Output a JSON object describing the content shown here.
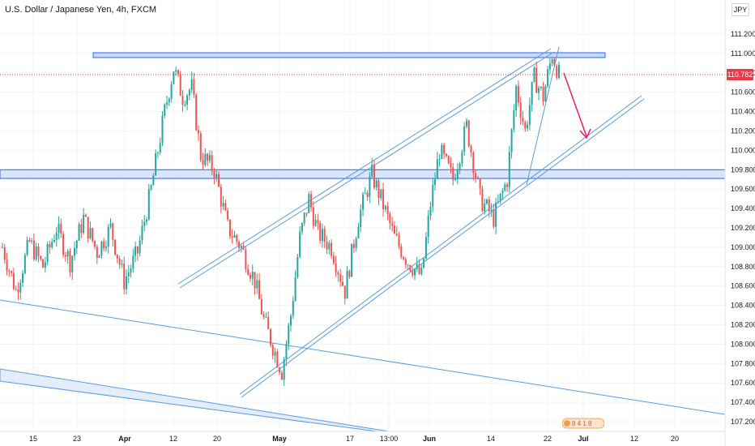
{
  "header": {
    "title": "U.S. Dollar / Japanese Yen, 4h, FXCM",
    "currency": "JPY"
  },
  "price_tag": {
    "value": "110.782",
    "color": "#f23645"
  },
  "colors": {
    "up": "#26a69a",
    "down": "#ef5350",
    "line": "#5b9bd5",
    "zone_fill": "#c9daf8",
    "zone_stroke": "#2962ff",
    "arrow": "#e91e63"
  },
  "chart_data": {
    "type": "candlestick",
    "title": "U.S. Dollar / Japanese Yen, 4h, FXCM",
    "ylim": [
      107.2,
      111.32
    ],
    "y_ticks": [
      "111.200",
      "111.000",
      "110.800",
      "110.600",
      "110.400",
      "110.200",
      "110.000",
      "109.800",
      "109.600",
      "109.400",
      "109.200",
      "109.000",
      "108.800",
      "108.600",
      "108.400",
      "108.200",
      "108.000",
      "107.800",
      "107.600",
      "107.400",
      "107.200"
    ],
    "x_ticks": [
      "15",
      "23",
      "Apr",
      "12",
      "20",
      "May",
      "17",
      "13:00",
      "Jun",
      "14",
      "22",
      "Jul",
      "12",
      "20"
    ],
    "last_price": 110.782,
    "price_path": [
      [
        0,
        109.0
      ],
      [
        6,
        108.55
      ],
      [
        12,
        109.05
      ],
      [
        18,
        108.8
      ],
      [
        24,
        109.2
      ],
      [
        30,
        108.85
      ],
      [
        36,
        109.3
      ],
      [
        42,
        108.95
      ],
      [
        48,
        109.2
      ],
      [
        54,
        108.65
      ],
      [
        60,
        108.95
      ],
      [
        66,
        109.6
      ],
      [
        72,
        110.4
      ],
      [
        76,
        110.85
      ],
      [
        80,
        110.55
      ],
      [
        84,
        110.65
      ],
      [
        88,
        109.95
      ],
      [
        94,
        109.8
      ],
      [
        100,
        109.2
      ],
      [
        106,
        109.0
      ],
      [
        112,
        108.65
      ],
      [
        116,
        108.25
      ],
      [
        120,
        107.98
      ],
      [
        124,
        107.72
      ],
      [
        128,
        108.3
      ],
      [
        132,
        109.1
      ],
      [
        136,
        109.5
      ],
      [
        140,
        109.15
      ],
      [
        146,
        109.0
      ],
      [
        152,
        108.55
      ],
      [
        158,
        109.3
      ],
      [
        164,
        109.75
      ],
      [
        168,
        109.5
      ],
      [
        174,
        109.1
      ],
      [
        180,
        108.85
      ],
      [
        186,
        108.7
      ],
      [
        190,
        109.45
      ],
      [
        194,
        110.0
      ],
      [
        200,
        109.7
      ],
      [
        206,
        110.25
      ],
      [
        212,
        109.5
      ],
      [
        218,
        109.3
      ],
      [
        224,
        109.7
      ],
      [
        228,
        110.65
      ],
      [
        232,
        110.2
      ],
      [
        236,
        110.75
      ],
      [
        240,
        110.55
      ],
      [
        244,
        111.0
      ],
      [
        247,
        110.78
      ]
    ],
    "annotations": [
      {
        "type": "zone",
        "label": "resistance",
        "y_range": [
          110.98,
          111.04
        ]
      },
      {
        "type": "zone",
        "label": "support",
        "y_range": [
          109.71,
          109.8
        ]
      }
    ]
  }
}
